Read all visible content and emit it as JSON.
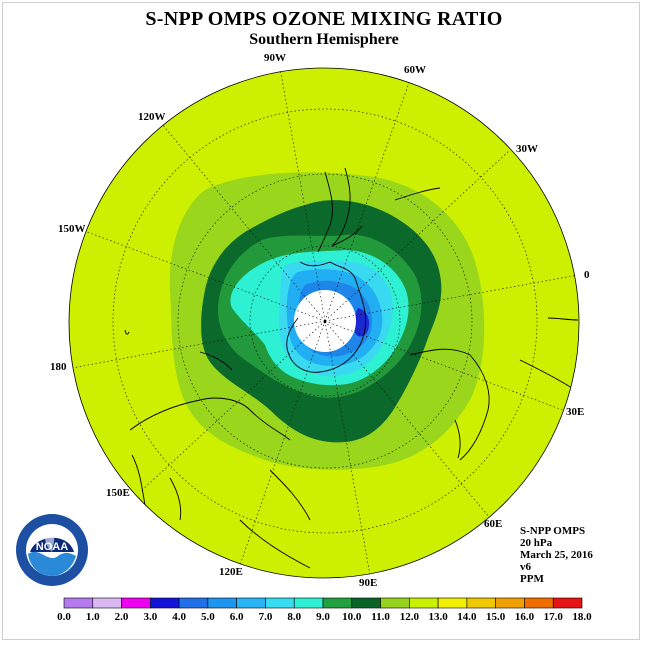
{
  "title": "S-NPP OMPS OZONE MIXING RATIO",
  "subtitle": "Southern Hemisphere",
  "info": {
    "instrument": "S-NPP OMPS",
    "level": "20 hPa",
    "date": "March 25, 2016",
    "version": "v6",
    "units": "PPM"
  },
  "logo": {
    "text": "NOAA"
  },
  "longitude_labels": [
    {
      "text": "90W",
      "lon": -90
    },
    {
      "text": "60W",
      "lon": -60
    },
    {
      "text": "30W",
      "lon": -30
    },
    {
      "text": "0",
      "lon": 0
    },
    {
      "text": "30E",
      "lon": 30
    },
    {
      "text": "60E",
      "lon": 60
    },
    {
      "text": "90E",
      "lon": 90
    },
    {
      "text": "120E",
      "lon": 120
    },
    {
      "text": "150E",
      "lon": 150
    },
    {
      "text": "180",
      "lon": 180
    },
    {
      "text": "150W",
      "lon": -150
    },
    {
      "text": "120W",
      "lon": -120
    }
  ],
  "colorbar": {
    "ticks": [
      "0.0",
      "1.0",
      "2.0",
      "3.0",
      "4.0",
      "5.0",
      "6.0",
      "7.0",
      "8.0",
      "9.0",
      "10.0",
      "11.0",
      "12.0",
      "13.0",
      "14.0",
      "15.0",
      "16.0",
      "17.0",
      "18.0"
    ],
    "colors": [
      "#b57aed",
      "#dcb8f2",
      "#f000f0",
      "#1414d8",
      "#1f6fe8",
      "#1e96f0",
      "#28b4f5",
      "#38dcf0",
      "#2ef0d2",
      "#22a040",
      "#0a6428",
      "#96d21e",
      "#c8f000",
      "#f0f000",
      "#f0c800",
      "#f0a000",
      "#f06e00",
      "#e61414",
      "#8c5a3c"
    ]
  },
  "map_colors": {
    "c_11_12": "#ccf000",
    "c_10_11": "#9ad61c",
    "c_9_10": "#0b6a2b",
    "c_8_9": "#229a3c",
    "c_7_8": "#2ef0d2",
    "c_6_7": "#3ad9f2",
    "c_5_6": "#21aef2",
    "c_4_5": "#1e86ea",
    "c_3_4": "#1a2ad0"
  }
}
